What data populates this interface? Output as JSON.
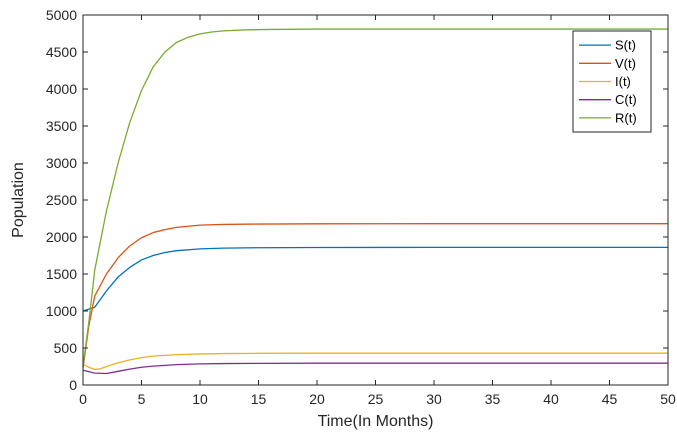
{
  "chart_data": {
    "type": "line",
    "title": "",
    "xlabel": "Time(In Months)",
    "ylabel": "Population",
    "xlim": [
      0,
      50
    ],
    "ylim": [
      0,
      5000
    ],
    "xticks": [
      0,
      5,
      10,
      15,
      20,
      25,
      30,
      35,
      40,
      45,
      50
    ],
    "yticks": [
      0,
      500,
      1000,
      1500,
      2000,
      2500,
      3000,
      3500,
      4000,
      4500,
      5000
    ],
    "grid": false,
    "legend_position": "top-right",
    "series": [
      {
        "name": "S(t)",
        "color": "#0072BD",
        "x": [
          0,
          1,
          2,
          3,
          4,
          5,
          6,
          7,
          8,
          10,
          12,
          15,
          20,
          30,
          40,
          50
        ],
        "y": [
          1000,
          1050,
          1270,
          1460,
          1590,
          1690,
          1750,
          1790,
          1815,
          1840,
          1850,
          1855,
          1858,
          1860,
          1860,
          1860
        ]
      },
      {
        "name": "V(t)",
        "color": "#D95319",
        "x": [
          0,
          0.5,
          1,
          2,
          3,
          4,
          5,
          6,
          7,
          8,
          10,
          12,
          15,
          20,
          30,
          40,
          50
        ],
        "y": [
          230,
          800,
          1200,
          1500,
          1720,
          1880,
          1990,
          2060,
          2100,
          2130,
          2160,
          2170,
          2175,
          2178,
          2180,
          2180,
          2180
        ]
      },
      {
        "name": "I(t)",
        "color": "#EDB120",
        "x": [
          0,
          0.5,
          1,
          1.5,
          2,
          3,
          4,
          5,
          6,
          8,
          10,
          12,
          15,
          20,
          30,
          40,
          50
        ],
        "y": [
          280,
          240,
          210,
          220,
          250,
          300,
          340,
          370,
          390,
          410,
          420,
          425,
          428,
          430,
          430,
          430,
          430
        ]
      },
      {
        "name": "C(t)",
        "color": "#7E2F8E",
        "x": [
          0,
          0.5,
          1,
          2,
          3,
          4,
          5,
          6,
          8,
          10,
          12,
          15,
          20,
          30,
          40,
          50
        ],
        "y": [
          200,
          180,
          160,
          155,
          185,
          215,
          240,
          255,
          275,
          285,
          290,
          292,
          295,
          295,
          295,
          295
        ]
      },
      {
        "name": "R(t)",
        "color": "#77AC30",
        "x": [
          0,
          0.5,
          1,
          2,
          3,
          4,
          5,
          6,
          7,
          8,
          9,
          10,
          11,
          12,
          14,
          16,
          20,
          30,
          40,
          50
        ],
        "y": [
          250,
          850,
          1550,
          2350,
          3000,
          3550,
          3980,
          4300,
          4500,
          4630,
          4700,
          4745,
          4770,
          4785,
          4800,
          4805,
          4810,
          4810,
          4810,
          4810
        ]
      }
    ]
  }
}
